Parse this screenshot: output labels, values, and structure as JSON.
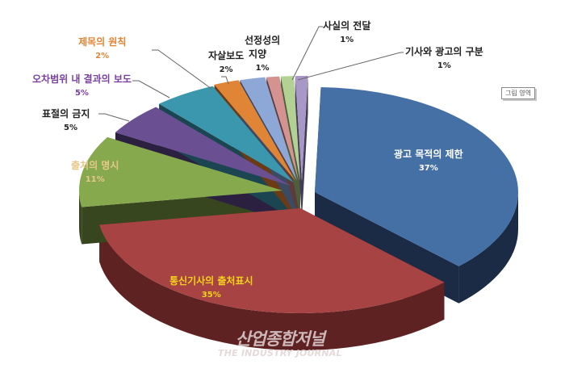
{
  "chart_data": {
    "type": "pie",
    "style": "3d-exploded",
    "title": "",
    "slices": [
      {
        "label": "광고 목적의 제한",
        "value": 37,
        "pct_label": "37%",
        "color": "#4470a6",
        "side": "#1c2b45",
        "label_color": "#ffffff"
      },
      {
        "label": "통신기사의 출처표시",
        "value": 35,
        "pct_label": "35%",
        "color": "#a84343",
        "side": "#5e2222",
        "label_color": "#f2d21c"
      },
      {
        "label": "출처의 명시",
        "value": 11,
        "pct_label": "11%",
        "color": "#86a94e",
        "side": "#37461f",
        "label_color": "#e8c88a"
      },
      {
        "label": "표절의 금지",
        "value": 5,
        "pct_label": "5%",
        "color": "#6b4f93",
        "side": "#2c2040",
        "label_color": "#222222"
      },
      {
        "label": "오차범위 내 결과의 보도",
        "value": 5,
        "pct_label": "5%",
        "color": "#3b97ad",
        "side": "#1b4551",
        "label_color": "#7a3fa0"
      },
      {
        "label": "제목의 원칙",
        "value": 2,
        "pct_label": "2%",
        "color": "#e08536",
        "side": "#6a3b14",
        "label_color": "#e08536"
      },
      {
        "label": "자살보도",
        "value": 2,
        "pct_label": "2%",
        "color": "#8da8d6",
        "side": "#3d4a63",
        "label_color": "#222222"
      },
      {
        "label": "선정성의 지양",
        "value": 1,
        "pct_label": "1%",
        "color": "#d49291",
        "side": "#5e3b3b",
        "label_color": "#222222"
      },
      {
        "label": "사실의 전달",
        "value": 1,
        "pct_label": "1%",
        "color": "#b3d192",
        "side": "#4d5e3b",
        "label_color": "#222222"
      },
      {
        "label": "기사와 광고의 구분",
        "value": 1,
        "pct_label": "1%",
        "color": "#a898c8",
        "side": "#433b57",
        "label_color": "#222222"
      }
    ],
    "legend": "none",
    "data_labels": "category name and percentage"
  },
  "labels": {
    "s0": {
      "name": "광고 목적의 제한",
      "pct": "37%"
    },
    "s1": {
      "name": "통신기사의 출처표시",
      "pct": "35%"
    },
    "s2": {
      "name": "출처의 명시",
      "pct": "11%"
    },
    "s3": {
      "name": "표절의 금지",
      "pct": "5%"
    },
    "s4": {
      "name": "오차범위 내 결과의 보도",
      "pct": "5%"
    },
    "s5": {
      "name": "제목의 원칙",
      "pct": "2%"
    },
    "s6": {
      "name": "자살보도",
      "pct": "2%"
    },
    "s7a": "선정성의",
    "s7b": "지양",
    "s7pct": "1%",
    "s8": {
      "name": "사실의 전달",
      "pct": "1%"
    },
    "s9": {
      "name": "기사와 광고의 구분",
      "pct": "1%"
    }
  },
  "plot_area_tag": "그림 영역",
  "watermark": {
    "ko": "산업종합저널",
    "en": "THE INDUSTRY JOURNAL"
  }
}
